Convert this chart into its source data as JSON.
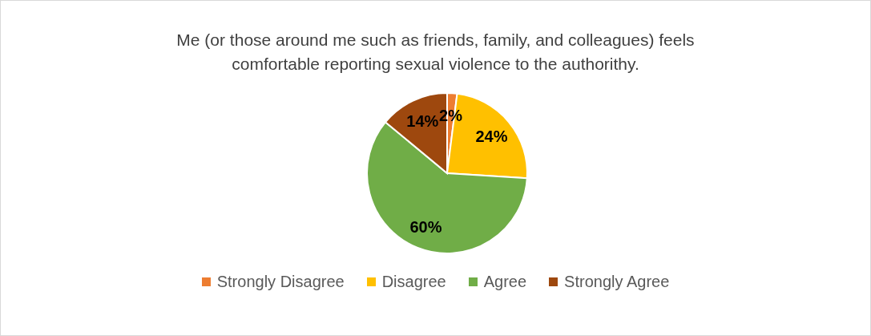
{
  "chart_data": {
    "type": "pie",
    "title": "Me (or those around me such as friends, family, and colleagues) feels comfortable reporting sexual violence to the authorithy.",
    "categories": [
      "Strongly Disagree",
      "Disagree",
      "Agree",
      "Strongly Agree"
    ],
    "values": [
      2,
      24,
      60,
      14
    ],
    "colors": [
      "#ed7d31",
      "#ffc000",
      "#70ad47",
      "#9e480e"
    ],
    "value_labels": [
      "2%",
      "24%",
      "60%",
      "14%"
    ],
    "legend": "bottom"
  }
}
